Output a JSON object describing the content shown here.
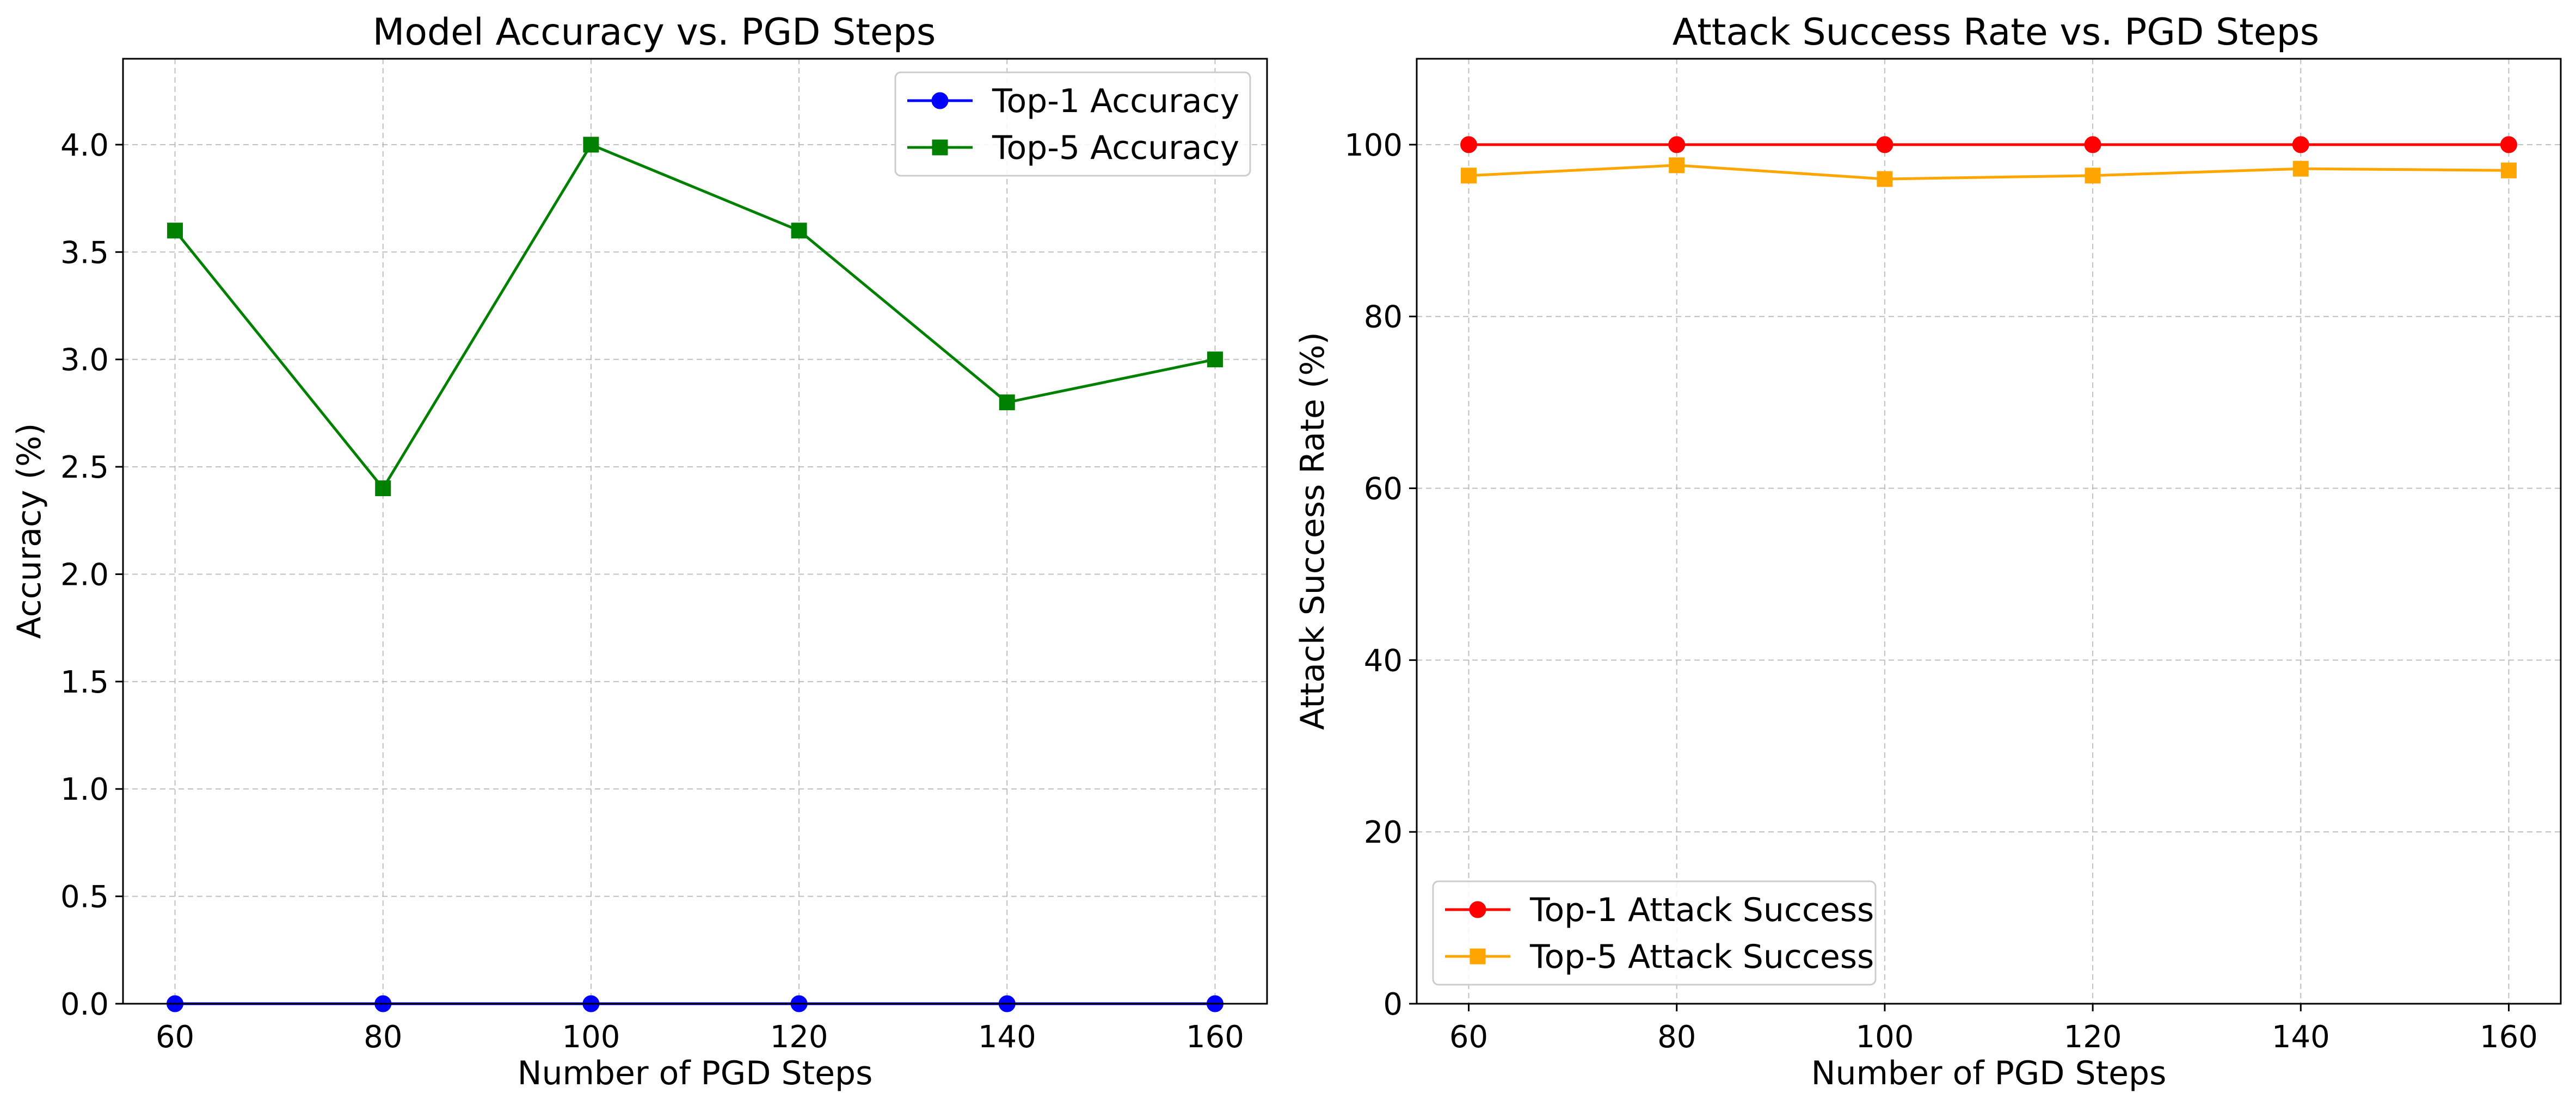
{
  "chart_data": [
    {
      "type": "line",
      "title": "Model Accuracy vs. PGD Steps",
      "xlabel": "Number of PGD Steps",
      "ylabel": "Accuracy (%)",
      "x": [
        60,
        80,
        100,
        120,
        140,
        160
      ],
      "x_ticks": [
        "60",
        "80",
        "100",
        "120",
        "140",
        "160"
      ],
      "xlim": [
        55,
        165
      ],
      "ylim": [
        0,
        4.4
      ],
      "y_ticks": [
        "0.0",
        "0.5",
        "1.0",
        "1.5",
        "2.0",
        "2.5",
        "3.0",
        "3.5",
        "4.0"
      ],
      "grid": true,
      "legend_position": "top-right",
      "series": [
        {
          "name": "Top-1 Accuracy",
          "values": [
            0,
            0,
            0,
            0,
            0,
            0
          ],
          "color": "#0000ff",
          "marker": "circle"
        },
        {
          "name": "Top-5 Accuracy",
          "values": [
            3.6,
            2.4,
            4.0,
            3.6,
            2.8,
            3.0
          ],
          "color": "#008000",
          "marker": "square"
        }
      ]
    },
    {
      "type": "line",
      "title": "Attack Success Rate vs. PGD Steps",
      "xlabel": "Number of PGD Steps",
      "ylabel": "Attack Success Rate (%)",
      "x": [
        60,
        80,
        100,
        120,
        140,
        160
      ],
      "x_ticks": [
        "60",
        "80",
        "100",
        "120",
        "140",
        "160"
      ],
      "xlim": [
        55,
        165
      ],
      "ylim": [
        0,
        110
      ],
      "y_ticks": [
        "0",
        "20",
        "40",
        "60",
        "80",
        "100"
      ],
      "grid": true,
      "legend_position": "bottom-left",
      "series": [
        {
          "name": "Top-1 Attack Success",
          "values": [
            100,
            100,
            100,
            100,
            100,
            100
          ],
          "color": "#ff0000",
          "marker": "circle"
        },
        {
          "name": "Top-5 Attack Success",
          "values": [
            96.4,
            97.6,
            96.0,
            96.4,
            97.2,
            97.0
          ],
          "color": "#ffa500",
          "marker": "square"
        }
      ]
    }
  ]
}
